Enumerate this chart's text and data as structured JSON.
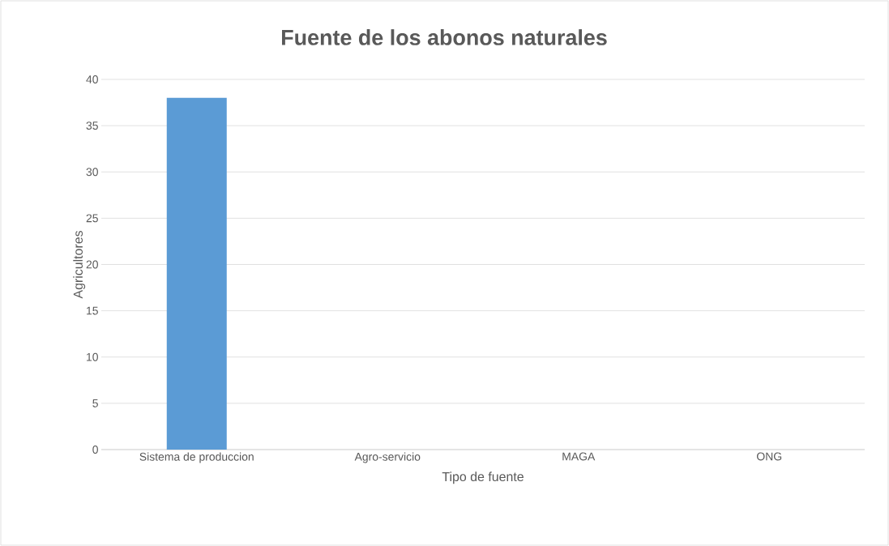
{
  "chart_data": {
    "type": "bar",
    "title": "Fuente de los abonos naturales",
    "xlabel": "Tipo de fuente",
    "ylabel": "Agricultores",
    "categories": [
      "Sistema de produccion",
      "Agro-servicio",
      "MAGA",
      "ONG"
    ],
    "values": [
      38,
      0,
      0,
      0
    ],
    "color": "#5b9bd5",
    "ylim": [
      0,
      40
    ],
    "yticks": [
      0,
      5,
      10,
      15,
      20,
      25,
      30,
      35,
      40
    ],
    "grid": "y"
  }
}
